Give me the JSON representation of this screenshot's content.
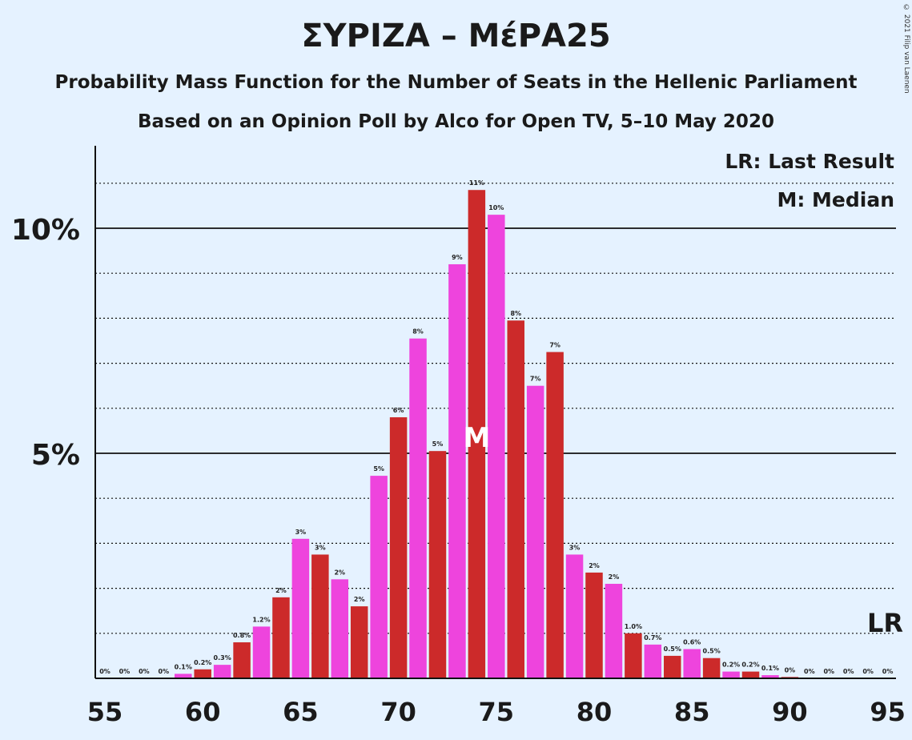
{
  "title": "ΣΥΡΙΖΑ – ΜέΡΑ25",
  "subtitle_1": "Probability Mass Function for the Number of Seats in the Hellenic Parliament",
  "subtitle_2": "Based on an Opinion Poll by Alco for Open TV, 5–10 May 2020",
  "copyright": "© 2021 Filip van Laenen",
  "colors": {
    "bar_a": "#ee44dd",
    "bar_b": "#cc2a2a",
    "background": "#e5f2ff"
  },
  "chart_data": {
    "type": "bar",
    "title": "ΣΥΡΙΖΑ – ΜέΡΑ25",
    "xlim": [
      55,
      95
    ],
    "ylim": [
      0,
      12
    ],
    "x_ticks": [
      "55",
      "60",
      "65",
      "70",
      "75",
      "80",
      "85",
      "90",
      "95"
    ],
    "y_ticks": [
      {
        "value": 5,
        "label": "5%"
      },
      {
        "value": 10,
        "label": "10%"
      }
    ],
    "grid": "dotted at every 1%, solid at 5% and 10%",
    "legend": [
      "LR: Last Result",
      "M: Median"
    ],
    "median": {
      "x": 74,
      "label": "M"
    },
    "last_result": {
      "y": 1,
      "label": "LR"
    },
    "x": [
      55,
      56,
      57,
      58,
      59,
      60,
      61,
      62,
      63,
      64,
      65,
      66,
      67,
      68,
      69,
      70,
      71,
      72,
      73,
      74,
      75,
      76,
      77,
      78,
      79,
      80,
      81,
      82,
      83,
      84,
      85,
      86,
      87,
      88,
      89,
      90,
      91,
      92,
      93,
      94,
      95
    ],
    "values": [
      0,
      0,
      0,
      0,
      0.1,
      0.2,
      0.3,
      0.8,
      1.15,
      1.8,
      3.1,
      2.75,
      2.2,
      1.6,
      4.5,
      5.8,
      7.55,
      5.05,
      9.2,
      10.85,
      10.3,
      7.95,
      6.5,
      7.25,
      2.75,
      2.35,
      2.1,
      1.0,
      0.75,
      0.5,
      0.65,
      0.45,
      0.15,
      0.15,
      0.07,
      0.03,
      0,
      0,
      0,
      0,
      0
    ],
    "labels": [
      "0%",
      "0%",
      "0%",
      "0%",
      "0.1%",
      "0.2%",
      "0.3%",
      "0.8%",
      "1.2%",
      "2%",
      "3%",
      "3%",
      "2%",
      "2%",
      "5%",
      "6%",
      "8%",
      "5%",
      "9%",
      "11%",
      "10%",
      "8%",
      "7%",
      "7%",
      "3%",
      "2%",
      "2%",
      "1.0%",
      "0.7%",
      "0.5%",
      "0.6%",
      "0.5%",
      "0.2%",
      "0.2%",
      "0.1%",
      "0%",
      "0%",
      "0%",
      "0%",
      "0%",
      "0%"
    ]
  }
}
